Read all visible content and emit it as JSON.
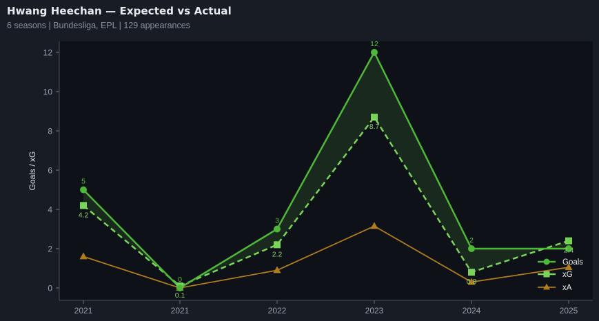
{
  "header": {
    "title": "Hwang Heechan — Expected vs Actual",
    "subtitle": "6 seasons | Bundesliga, EPL | 129 appearances"
  },
  "colors": {
    "background": "#181c24",
    "plot_background": "#0e1118",
    "goals": "#4fb83a",
    "xg": "#7ad45c",
    "xa": "#b07d1e",
    "fill": "#1b2b1e"
  },
  "chart_data": {
    "type": "line",
    "title": "Hwang Heechan — Expected vs Actual",
    "subtitle": "6 seasons | Bundesliga, EPL | 129 appearances",
    "xlabel": "",
    "ylabel": "Goals / xG",
    "categories": [
      "2021",
      "2021",
      "2022",
      "2023",
      "2024",
      "2025"
    ],
    "ylim": [
      -0.6,
      12.6
    ],
    "yticks": [
      0,
      2,
      4,
      6,
      8,
      10,
      12
    ],
    "grid": false,
    "legend_position": "lower right",
    "series": [
      {
        "name": "Goals",
        "marker": "circle",
        "style": "solid",
        "values": [
          5,
          0,
          3,
          12,
          2,
          2
        ],
        "labels": [
          "5",
          "0",
          "3",
          "12",
          "2",
          "2"
        ]
      },
      {
        "name": "xG",
        "marker": "square",
        "style": "dashed",
        "values": [
          4.2,
          0.1,
          2.2,
          8.7,
          0.8,
          2.4
        ],
        "labels": [
          "4.2",
          "0.1",
          "2.2",
          "8.7",
          "0.8",
          "2.4"
        ]
      },
      {
        "name": "xA",
        "marker": "triangle",
        "style": "solid",
        "values": [
          1.6,
          0.0,
          0.9,
          3.15,
          0.3,
          1.05
        ]
      }
    ],
    "annotations": [
      "shaded area between Goals and xG"
    ]
  },
  "legend": {
    "items": [
      {
        "label": "Goals"
      },
      {
        "label": "xG"
      },
      {
        "label": "xA"
      }
    ]
  }
}
